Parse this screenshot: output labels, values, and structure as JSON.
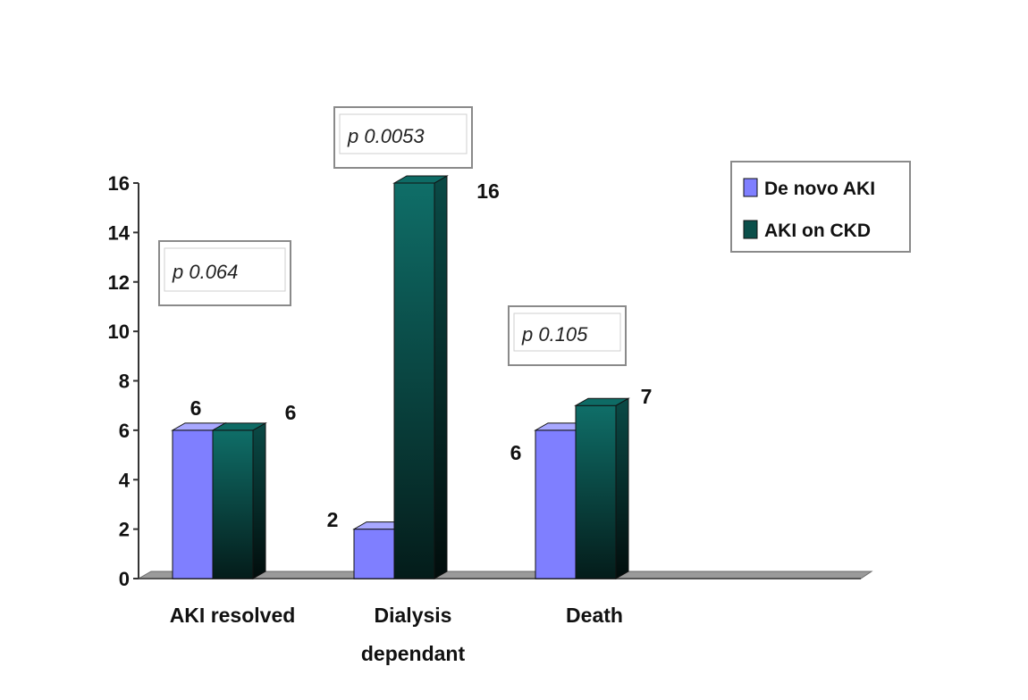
{
  "chart_data": {
    "type": "bar",
    "categories": [
      "AKI resolved",
      "Dialysis dependant",
      "Death"
    ],
    "series": [
      {
        "name": "De novo AKI",
        "values": [
          6,
          2,
          6
        ],
        "color": "#7f7fff"
      },
      {
        "name": "AKI on CKD",
        "values": [
          6,
          16,
          7
        ],
        "color": "#0b5e59"
      }
    ],
    "annotations": [
      "p 0.064",
      "p 0.0053",
      "p 0.105"
    ],
    "ylim": [
      0,
      16
    ],
    "yticks": [
      0,
      2,
      4,
      6,
      8,
      10,
      12,
      14,
      16
    ],
    "grid": false,
    "legend_position": "top-right",
    "style": "3d-clustered-column"
  }
}
